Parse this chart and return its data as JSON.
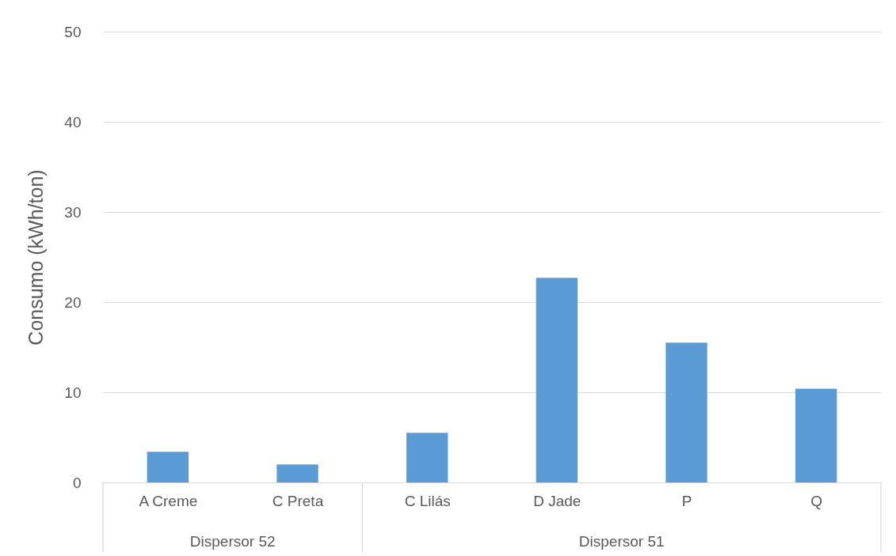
{
  "chart_data": {
    "type": "bar",
    "ylabel": "Consumo (kWh/ton)",
    "categories": [
      "A Creme",
      "C Preta",
      "C Lilás",
      "D Jade",
      "P",
      "Q"
    ],
    "values": [
      3.4,
      2.0,
      5.5,
      22.7,
      15.5,
      10.4
    ],
    "color": "#5b9bd5",
    "ylim": [
      0,
      50
    ],
    "yticks": [
      0,
      10,
      20,
      30,
      40,
      50
    ],
    "grid": "y",
    "annotations": [
      "Dispersor 52",
      "Dispersor 51"
    ]
  }
}
